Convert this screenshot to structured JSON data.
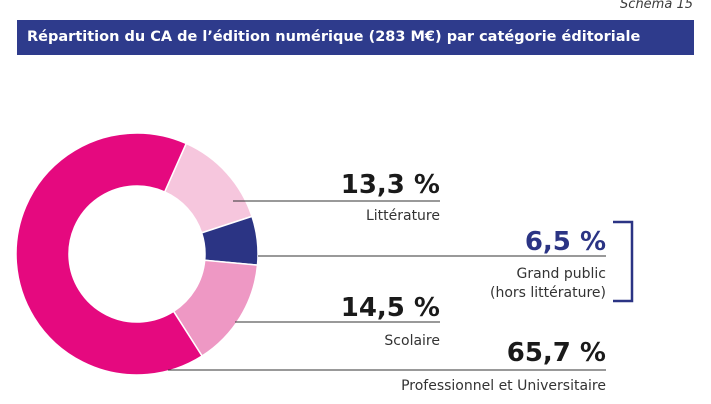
{
  "header": {
    "schema_label": "Schéma 15",
    "title": "Répartition du CA de l’édition numérique (283 M€) par catégorie éditoriale"
  },
  "chart_data": {
    "type": "pie",
    "style": "donut",
    "title": "Répartition du CA de l’édition numérique (283 M€) par catégorie éditoriale",
    "total": "283 M€",
    "slices": [
      {
        "label": "Littérature",
        "value": 13.3,
        "value_label": "13,3 %",
        "color": "#f6c6dd",
        "text_color": "#1a1a1a"
      },
      {
        "label": "Grand public (hors littérature)",
        "label_lines": [
          "Grand public",
          "(hors littérature)"
        ],
        "value": 6.5,
        "value_label": "6,5 %",
        "color": "#2b3484",
        "text_color": "#2b3484",
        "bracketed": true
      },
      {
        "label": "Scolaire",
        "value": 14.5,
        "value_label": "14,5 %",
        "color": "#ee98c4",
        "text_color": "#1a1a1a"
      },
      {
        "label": "Professionnel et Universitaire",
        "value": 65.7,
        "value_label": "65,7 %",
        "color": "#e5097f",
        "text_color": "#1a1a1a"
      }
    ],
    "start_angle_deg": 24,
    "direction": "clockwise",
    "legend": "callouts-right"
  }
}
